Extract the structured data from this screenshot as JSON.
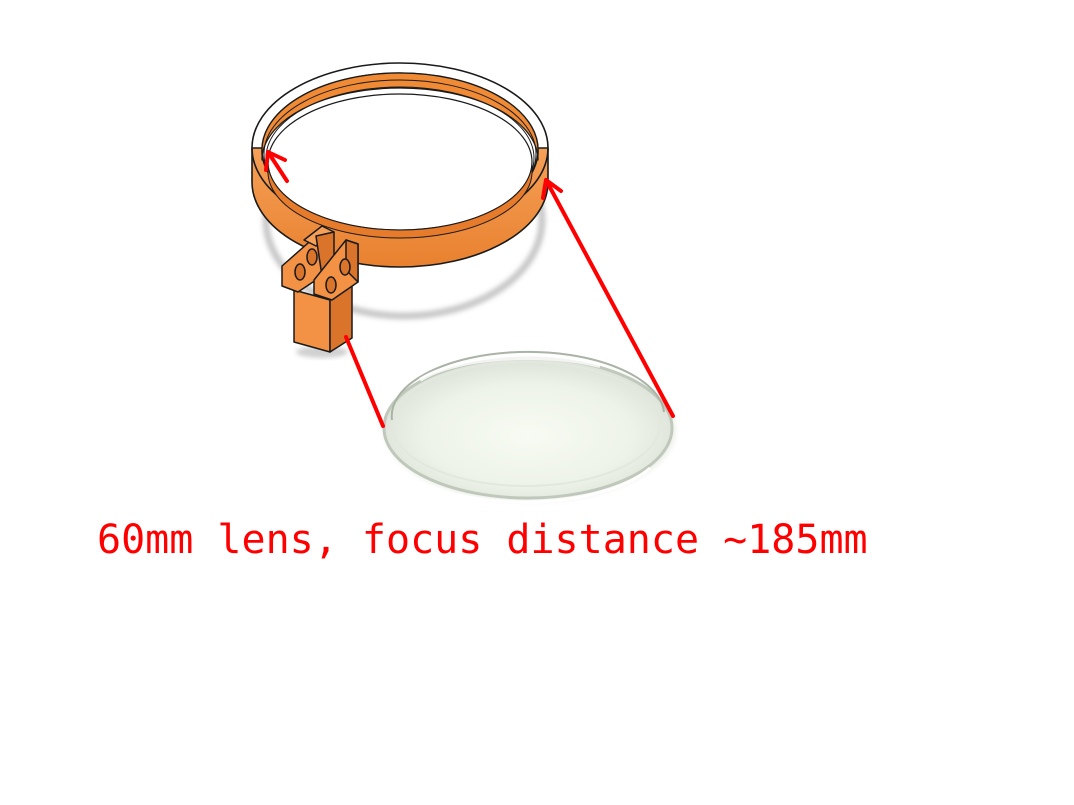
{
  "caption": {
    "text": "60mm lens, focus distance ~185mm",
    "color": "#ff0000"
  },
  "colors": {
    "holder": "#f28c3b",
    "holder_dark": "#d9742a",
    "outline": "#1a1a1a",
    "arrow": "#ff0000",
    "lens_rim": "#cfd6cc",
    "shadow": "#c8c8c8"
  },
  "icons": {
    "holder": "lens-holder-ring-icon",
    "lens": "glass-lens-icon"
  }
}
